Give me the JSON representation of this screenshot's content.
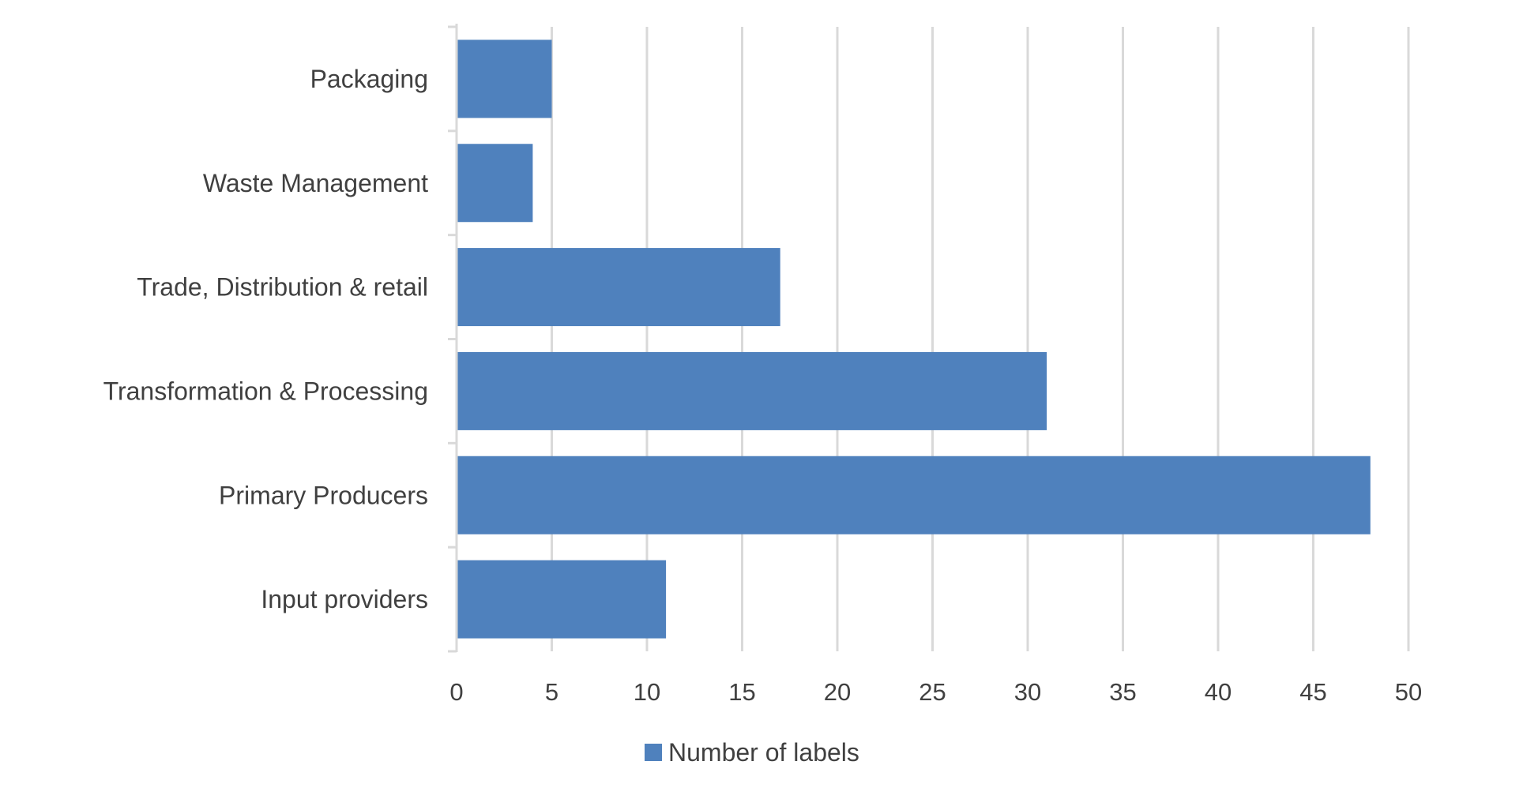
{
  "chart_data": {
    "type": "bar",
    "orientation": "horizontal",
    "title": "",
    "xlabel": "",
    "ylabel": "",
    "categories": [
      "Packaging",
      "Waste Management",
      "Trade, Distribution & retail",
      "Transformation & Processing",
      "Primary Producers",
      "Input providers"
    ],
    "series": [
      {
        "name": "Number of labels",
        "values": [
          5,
          4,
          17,
          31,
          48,
          11
        ],
        "color": "#4f81bd"
      }
    ],
    "xlim": [
      0,
      50
    ],
    "xticks": [
      0,
      5,
      10,
      15,
      20,
      25,
      30,
      35,
      40,
      45,
      50
    ],
    "grid": "vertical",
    "legend_position": "bottom",
    "colors": {
      "bar": "#4f81bd",
      "grid": "#d9d9d9",
      "text": "#404040"
    }
  }
}
